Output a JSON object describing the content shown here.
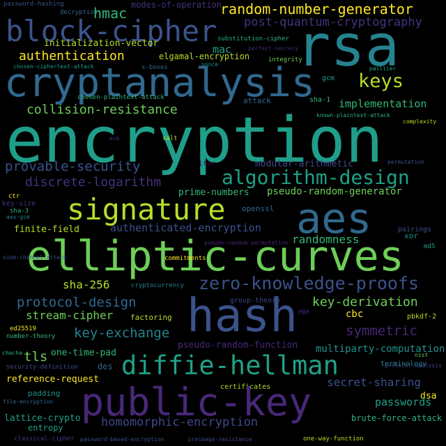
{
  "words": [
    {
      "text": "password-hashing",
      "color": "#3b528b"
    },
    {
      "text": "decryption",
      "color": "#31688e"
    },
    {
      "text": "hmac",
      "color": "#35b779"
    },
    {
      "text": "modes-of-operation",
      "color": "#46327e"
    },
    {
      "text": "random-number-generator",
      "color": "#fde725"
    },
    {
      "text": "block-cipher",
      "color": "#3b528b"
    },
    {
      "text": "rsa",
      "color": "#26828e"
    },
    {
      "text": "post-quantum-cryptography",
      "color": "#46327e"
    },
    {
      "text": "initialization-vector",
      "color": "#b5de2b"
    },
    {
      "text": "substitution-cipher",
      "color": "#2db27d"
    },
    {
      "text": "authentication",
      "color": "#fde725"
    },
    {
      "text": "mac",
      "color": "#1fa187"
    },
    {
      "text": "elgamal-encryption",
      "color": "#b5de2b"
    },
    {
      "text": "perfect-secrecy",
      "color": "#482878"
    },
    {
      "text": "nonce",
      "color": "#21918c"
    },
    {
      "text": "integrity",
      "color": "#6ece58"
    },
    {
      "text": "paillier",
      "color": "#1fa187"
    },
    {
      "text": "chosen-ciphertext-attack",
      "color": "#1f9e89"
    },
    {
      "text": "s-boxes",
      "color": "#31688e"
    },
    {
      "text": "cryptanalysis",
      "color": "#31688e"
    },
    {
      "text": "keys",
      "color": "#b5de2b"
    },
    {
      "text": "gcm",
      "color": "#1fa187"
    },
    {
      "text": "chosen-plaintext-attack",
      "color": "#35b779"
    },
    {
      "text": "attack",
      "color": "#31688e"
    },
    {
      "text": "sha-1",
      "color": "#35b779"
    },
    {
      "text": "implementation",
      "color": "#35b779"
    },
    {
      "text": "collision-resistance",
      "color": "#6ece58"
    },
    {
      "text": "known-plaintext-attack",
      "color": "#2db27d"
    },
    {
      "text": "complexity",
      "color": "#b5de2b"
    },
    {
      "text": "encryption",
      "color": "#1f9e89"
    },
    {
      "text": "ecb",
      "color": "#443983"
    },
    {
      "text": "salt",
      "color": "#b5de2b"
    },
    {
      "text": "permutation",
      "color": "#3b528b"
    },
    {
      "text": "lfsr",
      "color": "#440154"
    },
    {
      "text": "modular-arithmetic",
      "color": "#3e4989"
    },
    {
      "text": "provable-security",
      "color": "#3b528b"
    },
    {
      "text": "algorithm-design",
      "color": "#1fa187"
    },
    {
      "text": "discrete-logarithm",
      "color": "#46327e"
    },
    {
      "text": "prime-numbers",
      "color": "#35b779"
    },
    {
      "text": "pseudo-random-generator",
      "color": "#6ece58"
    },
    {
      "text": "signature",
      "color": "#b5de2b"
    },
    {
      "text": "aes",
      "color": "#31688e"
    },
    {
      "text": "ctr",
      "color": "#fde725"
    },
    {
      "text": "key-size",
      "color": "#46327e"
    },
    {
      "text": "sha-3",
      "color": "#2db27d"
    },
    {
      "text": "aes-gcm",
      "color": "#26828e"
    },
    {
      "text": "openssl",
      "color": "#31688e"
    },
    {
      "text": "pairings",
      "color": "#3b528b"
    },
    {
      "text": "finite-field",
      "color": "#b5de2b"
    },
    {
      "text": "authenticated-encryption",
      "color": "#3b528b"
    },
    {
      "text": "xor",
      "color": "#21918c"
    },
    {
      "text": "pseudo-random-permutation",
      "color": "#482878"
    },
    {
      "text": "randomness",
      "color": "#35b779"
    },
    {
      "text": "elliptic-curves",
      "color": "#6ece58"
    },
    {
      "text": "md5",
      "color": "#1f9e89"
    },
    {
      "text": "side-channel-attack",
      "color": "#3b528b"
    },
    {
      "text": "commitments",
      "color": "#fde725"
    },
    {
      "text": "zero-knowledge-proofs",
      "color": "#3b528b"
    },
    {
      "text": "sha-256",
      "color": "#b5de2b"
    },
    {
      "text": "cryptocurrency",
      "color": "#26828e"
    },
    {
      "text": "protocol-design",
      "color": "#31688e"
    },
    {
      "text": "key-derivation",
      "color": "#6ece58"
    },
    {
      "text": "group-theory",
      "color": "#3e4989"
    },
    {
      "text": "stream-cipher",
      "color": "#6ece58"
    },
    {
      "text": "hash",
      "color": "#3b528b"
    },
    {
      "text": "PBP",
      "color": "#482878"
    },
    {
      "text": "cbc",
      "color": "#fde725"
    },
    {
      "text": "symmetric",
      "color": "#482878"
    },
    {
      "text": "pbkdf-2",
      "color": "#b5de2b"
    },
    {
      "text": "ed25519",
      "color": "#fde725"
    },
    {
      "text": "factoring",
      "color": "#b5de2b"
    },
    {
      "text": "number-theory",
      "color": "#35b779"
    },
    {
      "text": "key-exchange",
      "color": "#26828e"
    },
    {
      "text": "one-time-pad",
      "color": "#35b779"
    },
    {
      "text": "tls",
      "color": "#6ece58"
    },
    {
      "text": "pseudo-random-function",
      "color": "#482878"
    },
    {
      "text": "multiparty-computation",
      "color": "#21918c"
    },
    {
      "text": "chacha",
      "color": "#2db27d"
    },
    {
      "text": "nist",
      "color": "#6ece58"
    },
    {
      "text": "security-definition",
      "color": "#3e4989"
    },
    {
      "text": "diffie-hellman",
      "color": "#1fa187"
    },
    {
      "text": "des",
      "color": "#31688e"
    },
    {
      "text": "terminology",
      "color": "#26828e"
    },
    {
      "text": "protocol-analysis",
      "color": "#3e4989"
    },
    {
      "text": "secret-sharing",
      "color": "#3b528b"
    },
    {
      "text": "reference-request",
      "color": "#fde725"
    },
    {
      "text": "padding",
      "color": "#21918c"
    },
    {
      "text": "certificates",
      "color": "#b5de2b"
    },
    {
      "text": "file-encryption",
      "color": "#31688e"
    },
    {
      "text": "dsa",
      "color": "#fde725"
    },
    {
      "text": "public-key",
      "color": "#482878"
    },
    {
      "text": "passwords",
      "color": "#1fa187"
    },
    {
      "text": "lattice-crypto",
      "color": "#1fa187"
    },
    {
      "text": "entropy",
      "color": "#1f9e89"
    },
    {
      "text": "homomorphic-encryption",
      "color": "#3e4989"
    },
    {
      "text": "brute-force-attack",
      "color": "#2db27d"
    },
    {
      "text": "classical-cipher",
      "color": "#443983"
    },
    {
      "text": "password-based-encryption",
      "color": "#3b528b"
    },
    {
      "text": "preimage-resistance",
      "color": "#3e4989"
    },
    {
      "text": "one-way-function",
      "color": "#b5de2b"
    }
  ]
}
